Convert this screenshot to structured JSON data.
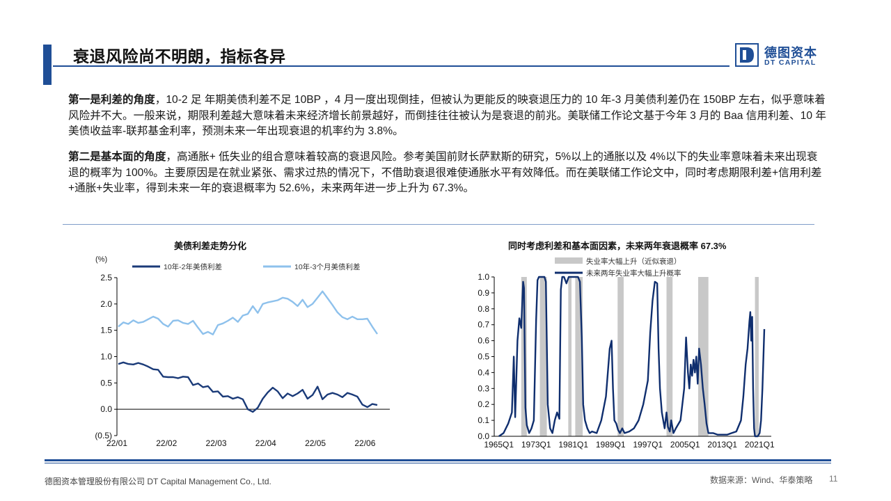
{
  "slide": {
    "title": "衰退风险尚不明朗，指标各异",
    "logo_cn": "德图资本",
    "logo_en": "DT CAPITAL",
    "brand_color": "#1f4e96"
  },
  "paragraphs": [
    {
      "lead": "第一是利差的角度",
      "body": "，10-2 足 年期美债利差不足 10BP ，4 月一度出现倒挂，但被认为更能反的映衰退压力的 10 年-3 月美债利差仍在 150BP 左右，似乎意味着风险并不大。一般来说，期限利差越大意味着未来经济增长前景越好，而倒挂往往被认为是衰退的前兆。美联储工作论文基于今年 3 月的 Baa 信用利差、10 年美债收益率-联邦基金利率，预测未来一年出现衰退的机率约为 3.8%。"
    },
    {
      "lead": "第二是基本面的角度",
      "body": "，高通胀+ 低失业的组合意味着较高的衰退风险。参考美国前财长萨默斯的研究，5%以上的通胀以及 4%以下的失业率意味着未来出现衰退的概率为 100%。主要原因是在就业紧张、需求过热的情况下，不借助衰退很难使通胀水平有效降低。而在美联储工作论文中，同时考虑期限利差+信用利差+通胀+失业率，得到未来一年的衰退概率为 52.6%，未来两年进一步上升为 67.3%。"
    }
  ],
  "chart_data": [
    {
      "type": "line",
      "title": "美债利差走势分化",
      "ylabel": "(%)",
      "ylim": [
        -0.5,
        2.5
      ],
      "yticks": [
        "2.5",
        "2.0",
        "1.5",
        "1.0",
        "0.5",
        "0.0",
        "(0.5)"
      ],
      "xticks": [
        "22/01",
        "22/02",
        "22/03",
        "22/04",
        "22/05",
        "22/06"
      ],
      "legend_position": "top",
      "series": [
        {
          "name": "10年-2年美债利差",
          "color": "#1a3a78",
          "x": [
            "22/01",
            "22/01",
            "22/01",
            "22/01",
            "22/01",
            "22/01",
            "22/01",
            "22/02",
            "22/02",
            "22/02",
            "22/02",
            "22/02",
            "22/02",
            "22/02",
            "22/02",
            "22/03",
            "22/03",
            "22/03",
            "22/03",
            "22/03",
            "22/03",
            "22/03",
            "22/03",
            "22/03",
            "22/03",
            "22/04",
            "22/04",
            "22/04",
            "22/04",
            "22/04",
            "22/04",
            "22/04",
            "22/04",
            "22/04",
            "22/04",
            "22/05",
            "22/05",
            "22/05",
            "22/05",
            "22/05",
            "22/05",
            "22/05",
            "22/05",
            "22/06",
            "22/06",
            "22/06",
            "22/06",
            "22/06",
            "22/06",
            "22/06",
            "22/06",
            "22/06",
            "22/06"
          ],
          "values": [
            0.86,
            0.89,
            0.86,
            0.85,
            0.88,
            0.85,
            0.81,
            0.76,
            0.75,
            0.62,
            0.61,
            0.61,
            0.59,
            0.62,
            0.61,
            0.46,
            0.49,
            0.42,
            0.44,
            0.33,
            0.34,
            0.24,
            0.25,
            0.2,
            0.23,
            0.19,
            0.0,
            -0.05,
            0.03,
            0.2,
            0.32,
            0.41,
            0.34,
            0.21,
            0.3,
            0.25,
            0.3,
            0.37,
            0.2,
            0.27,
            0.43,
            0.19,
            0.28,
            0.31,
            0.28,
            0.23,
            0.31,
            0.28,
            0.24,
            0.09,
            0.04,
            0.1,
            0.08
          ]
        },
        {
          "name": "10年-3个月美债利差",
          "color": "#8ec1ec",
          "x": [
            "22/01",
            "22/01",
            "22/01",
            "22/01",
            "22/01",
            "22/01",
            "22/01",
            "22/02",
            "22/02",
            "22/02",
            "22/02",
            "22/02",
            "22/02",
            "22/02",
            "22/02",
            "22/03",
            "22/03",
            "22/03",
            "22/03",
            "22/03",
            "22/03",
            "22/03",
            "22/03",
            "22/03",
            "22/03",
            "22/04",
            "22/04",
            "22/04",
            "22/04",
            "22/04",
            "22/04",
            "22/04",
            "22/04",
            "22/04",
            "22/04",
            "22/05",
            "22/05",
            "22/05",
            "22/05",
            "22/05",
            "22/05",
            "22/05",
            "22/05",
            "22/06",
            "22/06",
            "22/06",
            "22/06",
            "22/06",
            "22/06",
            "22/06",
            "22/06",
            "22/06",
            "22/06"
          ],
          "values": [
            1.57,
            1.65,
            1.62,
            1.69,
            1.64,
            1.66,
            1.71,
            1.76,
            1.72,
            1.62,
            1.57,
            1.68,
            1.69,
            1.64,
            1.62,
            1.68,
            1.55,
            1.43,
            1.47,
            1.42,
            1.6,
            1.63,
            1.68,
            1.74,
            1.66,
            1.78,
            1.81,
            1.96,
            1.83,
            2.0,
            2.03,
            2.05,
            2.07,
            2.12,
            2.1,
            2.04,
            1.96,
            2.08,
            1.94,
            2.0,
            2.12,
            2.24,
            2.11,
            1.98,
            1.84,
            1.75,
            1.71,
            1.76,
            1.71,
            1.71,
            1.72,
            1.57,
            1.43
          ]
        }
      ]
    },
    {
      "type": "line",
      "title": "同时考虑利差和基本面因素，未来两年衰退概率 67.3%",
      "ylim": [
        0.0,
        1.0
      ],
      "yticks": [
        "1.0",
        "0.9",
        "0.8",
        "0.7",
        "0.6",
        "0.5",
        "0.4",
        "0.3",
        "0.2",
        "0.1",
        "0.0"
      ],
      "xticks": [
        "1965Q1",
        "1973Q1",
        "1981Q1",
        "1989Q1",
        "1997Q1",
        "2005Q1",
        "2013Q1",
        "2021Q1"
      ],
      "legend_position": "top",
      "shaded_series_name": "失业率大幅上升（近似衰退）",
      "shaded_color": "#c8c8c8",
      "shaded_periods": [
        [
          1969.8,
          1971.0
        ],
        [
          1973.8,
          1975.3
        ],
        [
          1979.9,
          1980.6
        ],
        [
          1981.4,
          1983.0
        ],
        [
          1990.5,
          1991.8
        ],
        [
          2001.0,
          2002.3
        ],
        [
          2007.8,
          2010.0
        ],
        [
          2020.0,
          2020.8
        ]
      ],
      "series": [
        {
          "name": "未来两年失业率大幅上升概率",
          "color": "#0f2e6e",
          "x": [
            1965.0,
            1966.0,
            1967.0,
            1967.8,
            1968.2,
            1968.5,
            1969.0,
            1969.4,
            1969.8,
            1970.2,
            1970.4,
            1970.7,
            1971.0,
            1971.5,
            1972.0,
            1972.5,
            1973.0,
            1973.3,
            1973.6,
            1974.0,
            1974.4,
            1974.8,
            1975.1,
            1975.5,
            1976.0,
            1976.5,
            1977.0,
            1977.5,
            1978.0,
            1978.3,
            1978.6,
            1979.0,
            1979.5,
            1980.0,
            1980.5,
            1981.0,
            1981.5,
            1982.0,
            1982.4,
            1982.8,
            1983.1,
            1983.5,
            1984.0,
            1984.5,
            1985.0,
            1986.0,
            1987.0,
            1988.0,
            1988.8,
            1989.2,
            1989.5,
            1989.8,
            1990.2,
            1990.6,
            1991.0,
            1991.5,
            1992.0,
            1993.0,
            1994.0,
            1995.0,
            1996.0,
            1997.0,
            1997.5,
            1998.0,
            1998.5,
            1999.0,
            1999.3,
            1999.6,
            2000.0,
            2000.3,
            2000.6,
            2001.0,
            2001.3,
            2001.7,
            2002.0,
            2002.5,
            2003.0,
            2004.0,
            2004.8,
            2005.2,
            2005.6,
            2005.9,
            2006.2,
            2006.5,
            2006.8,
            2007.1,
            2007.4,
            2007.7,
            2008.0,
            2008.4,
            2008.8,
            2009.2,
            2009.6,
            2010.0,
            2011.0,
            2012.0,
            2013.0,
            2014.0,
            2015.0,
            2016.0,
            2017.0,
            2017.5,
            2018.0,
            2018.4,
            2018.8,
            2019.0,
            2019.2,
            2019.4,
            2019.6,
            2019.8,
            2020.0,
            2020.3,
            2020.6,
            2021.0,
            2021.3,
            2021.6,
            2022.0
          ],
          "values": [
            0.0,
            0.02,
            0.08,
            0.15,
            0.5,
            0.12,
            0.6,
            0.74,
            0.68,
            0.97,
            0.93,
            0.18,
            0.07,
            0.02,
            0.05,
            0.1,
            0.73,
            0.98,
            1.0,
            1.0,
            1.0,
            1.0,
            0.97,
            0.2,
            0.05,
            0.02,
            0.1,
            0.15,
            0.11,
            0.92,
            1.0,
            1.0,
            0.96,
            1.0,
            1.0,
            1.0,
            1.0,
            1.0,
            0.97,
            0.62,
            0.2,
            0.1,
            0.05,
            0.02,
            0.03,
            0.02,
            0.1,
            0.25,
            0.55,
            0.6,
            0.3,
            0.1,
            0.08,
            0.04,
            0.02,
            0.05,
            0.02,
            0.03,
            0.05,
            0.1,
            0.2,
            0.35,
            0.65,
            0.85,
            0.97,
            0.96,
            0.55,
            0.3,
            0.15,
            0.1,
            0.05,
            0.15,
            0.06,
            0.03,
            0.1,
            0.02,
            0.05,
            0.1,
            0.3,
            0.62,
            0.4,
            0.3,
            0.45,
            0.38,
            0.48,
            0.4,
            0.5,
            0.33,
            0.55,
            0.45,
            0.3,
            0.2,
            0.08,
            0.02,
            0.02,
            0.01,
            0.01,
            0.01,
            0.02,
            0.03,
            0.1,
            0.25,
            0.45,
            0.55,
            0.72,
            0.78,
            0.6,
            0.75,
            0.3,
            0.05,
            0.0,
            0.0,
            0.0,
            0.02,
            0.1,
            0.3,
            0.673
          ]
        }
      ]
    }
  ],
  "footer": {
    "company": "德图资本管理股份有限公司  DT Capital Management  Co., Ltd.",
    "source": "数据来源：Wind、华泰策略",
    "page": "11"
  }
}
